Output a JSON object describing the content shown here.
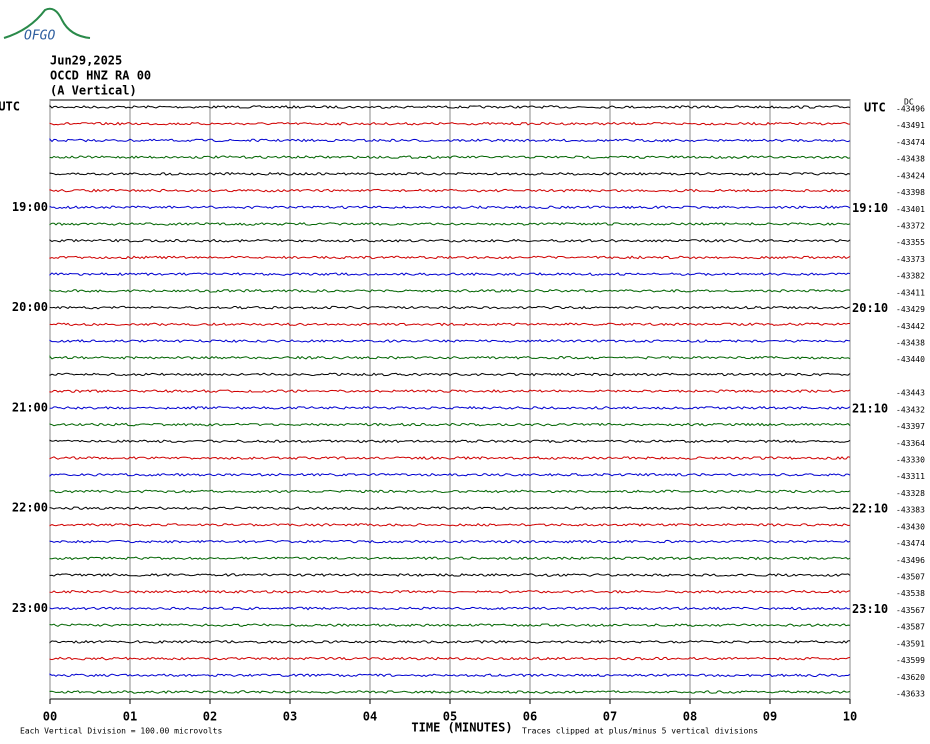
{
  "logo": "OFGO",
  "header": {
    "date": "Jun29,2025",
    "station": "OCCD HNZ RA 00",
    "component": "(A Vertical)"
  },
  "left_labels": [
    "UTC",
    "19:00",
    "20:00",
    "21:00",
    "22:00",
    "23:00"
  ],
  "right_labels": [
    "UTC",
    "19:10",
    "20:10",
    "21:10",
    "22:10",
    "23:10"
  ],
  "offset_heading": "DC",
  "offsets": [
    -43496,
    -43491,
    -43474,
    -43438,
    -43424,
    -43398,
    -43401,
    -43372,
    -43355,
    -43373,
    -43382,
    -43411,
    -43429,
    -43442,
    -43438,
    -43440,
    null,
    -43443,
    -43432,
    -43397,
    -43364,
    -43330,
    -43311,
    -43328,
    -43383,
    -43430,
    -43474,
    -43496,
    -43507,
    -43538,
    -43567,
    -43587,
    -43591,
    -43599,
    -43620,
    -43633
  ],
  "trace_colors": [
    "#000000",
    "#d00000",
    "#0000d0",
    "#006400"
  ],
  "x_ticks": [
    "00",
    "01",
    "02",
    "03",
    "04",
    "05",
    "06",
    "07",
    "08",
    "09",
    "10"
  ],
  "footer": {
    "scale": "Each Vertical Division =  100.00 microvolts",
    "x_label": "TIME (MINUTES)",
    "clip": "Traces clipped at plus/minus 5 vertical divisions"
  }
}
